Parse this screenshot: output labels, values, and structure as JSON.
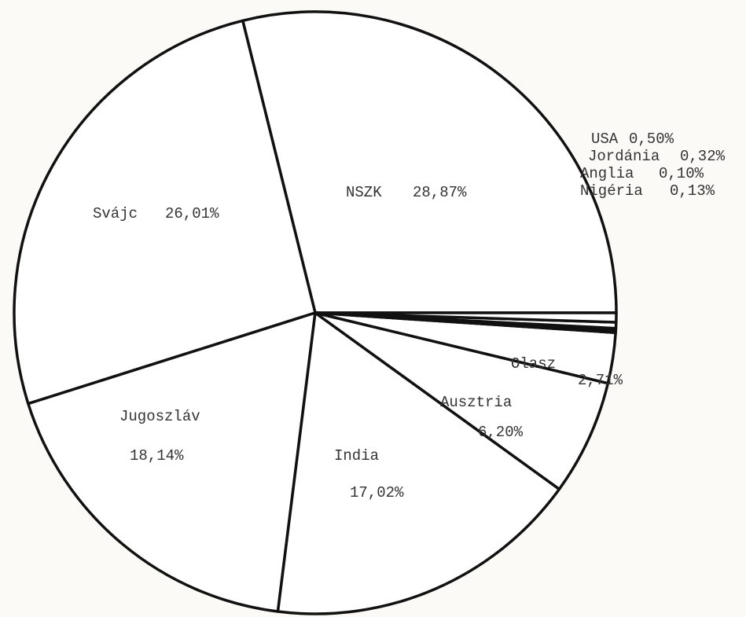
{
  "chart_data": {
    "type": "pie",
    "categories": [
      "NSZK",
      "Svájc",
      "Jugoszláv",
      "India",
      "Ausztria",
      "Olasz",
      "Nigéria",
      "Anglia",
      "Jordánia",
      "USA"
    ],
    "values": [
      28.87,
      26.01,
      18.14,
      17.02,
      6.2,
      2.71,
      0.13,
      0.1,
      0.32,
      0.5
    ],
    "value_labels": [
      "28,87%",
      "26,01%",
      "18,14%",
      "17,02%",
      "6,20%",
      "2,71%",
      "0,13%",
      "0,10%",
      "0,32%",
      "0,50%"
    ],
    "color": "#ffffff"
  }
}
